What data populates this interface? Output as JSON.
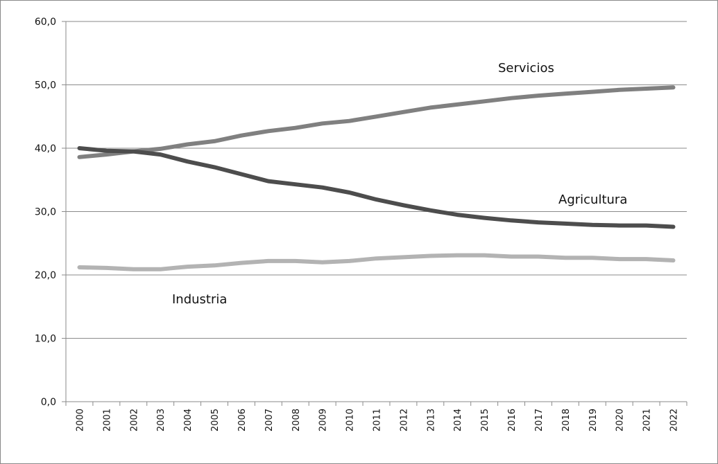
{
  "chart_data": {
    "type": "line",
    "categories": [
      "2000",
      "2001",
      "2002",
      "2003",
      "2004",
      "2005",
      "2006",
      "2007",
      "2008",
      "2009",
      "2010",
      "2011",
      "2012",
      "2013",
      "2014",
      "2015",
      "2016",
      "2017",
      "2018",
      "2019",
      "2020",
      "2021",
      "2022"
    ],
    "series": [
      {
        "name": "Servicios",
        "color": "#808080",
        "values": [
          38.6,
          39.0,
          39.5,
          39.9,
          40.6,
          41.1,
          42.0,
          42.7,
          43.2,
          43.9,
          44.3,
          45.0,
          45.7,
          46.4,
          46.9,
          47.4,
          47.9,
          48.3,
          48.6,
          48.9,
          49.2,
          49.4,
          49.6
        ]
      },
      {
        "name": "Agricultura",
        "color": "#4d4d4d",
        "values": [
          40.0,
          39.6,
          39.5,
          39.0,
          37.9,
          37.0,
          35.9,
          34.8,
          34.3,
          33.8,
          33.0,
          31.9,
          31.0,
          30.2,
          29.5,
          29.0,
          28.6,
          28.3,
          28.1,
          27.9,
          27.8,
          27.8,
          27.6
        ]
      },
      {
        "name": "Industria",
        "color": "#b3b3b3",
        "values": [
          21.2,
          21.1,
          20.9,
          20.9,
          21.3,
          21.5,
          21.9,
          22.2,
          22.2,
          22.0,
          22.2,
          22.6,
          22.8,
          23.0,
          23.1,
          23.1,
          22.9,
          22.9,
          22.7,
          22.7,
          22.5,
          22.5,
          22.3
        ]
      }
    ],
    "ylim": [
      0,
      60
    ],
    "yticks": [
      {
        "value": 0,
        "label": "0,0"
      },
      {
        "value": 10,
        "label": "10,0"
      },
      {
        "value": 20,
        "label": "20,0"
      },
      {
        "value": 30,
        "label": "30,0"
      },
      {
        "value": 40,
        "label": "40,0"
      },
      {
        "value": 50,
        "label": "50,0"
      },
      {
        "value": 60,
        "label": "60,0"
      }
    ],
    "grid": true
  }
}
